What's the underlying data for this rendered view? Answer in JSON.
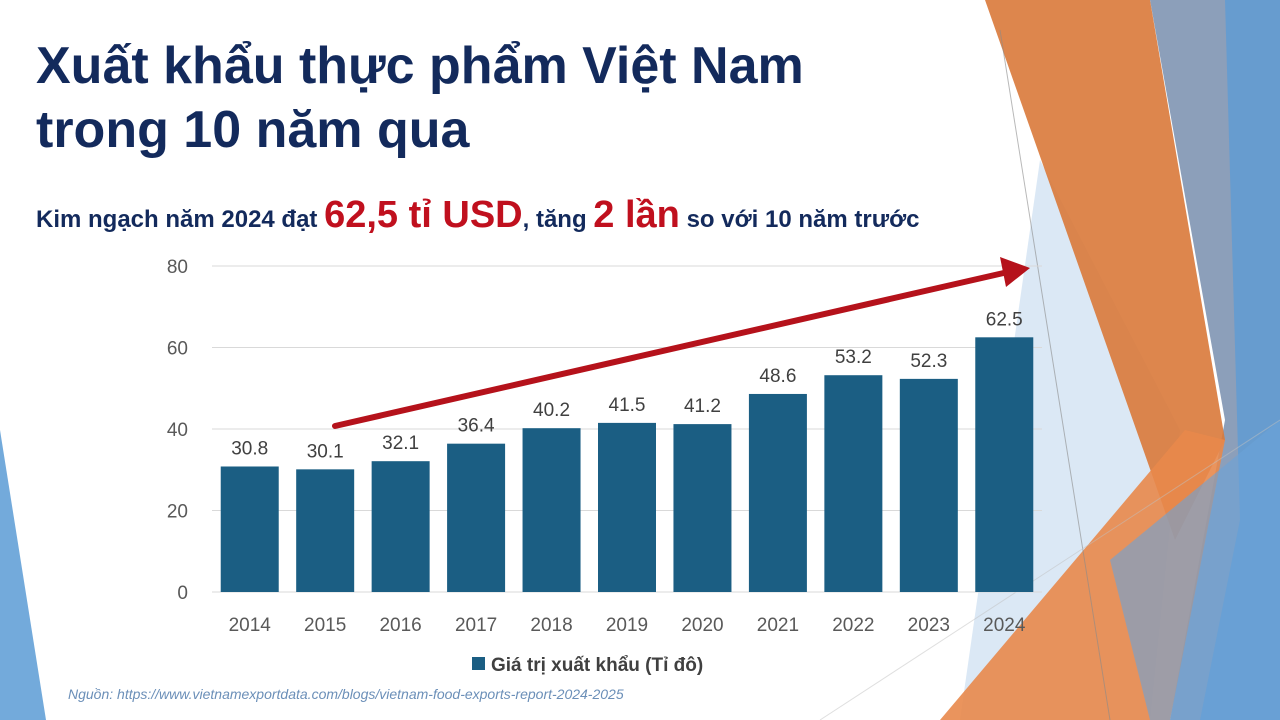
{
  "title": {
    "line1": "Xuất khẩu thực phẩm Việt Nam",
    "line2": "trong 10 năm qua"
  },
  "subtitle": {
    "part1": "Kim ngạch năm 2024 đạt ",
    "highlight1": "62,5 tỉ USD",
    "part2": ", tăng ",
    "highlight2": "2 lần",
    "part3": " so với 10 năm trước"
  },
  "source": "Nguồn: https://www.vietnamexportdata.com/blogs/vietnam-food-exports-report-2024-2025",
  "colors": {
    "title": "#132a5c",
    "highlight": "#c0101e",
    "bar": "#1b5e83",
    "arrow": "#b5121b",
    "orange": "#e07b3a",
    "blue_accent": "#5b9bd5"
  },
  "chart_data": {
    "type": "bar",
    "categories": [
      "2014",
      "2015",
      "2016",
      "2017",
      "2018",
      "2019",
      "2020",
      "2021",
      "2022",
      "2023",
      "2024"
    ],
    "series": [
      {
        "name": "Giá trị xuất khẩu (Tỉ đô)",
        "values": [
          30.8,
          30.1,
          32.1,
          36.4,
          40.2,
          41.5,
          41.2,
          48.6,
          53.2,
          52.3,
          62.5
        ]
      }
    ],
    "y_ticks": [
      "0",
      "20",
      "40",
      "60",
      "80"
    ],
    "ylim": [
      0,
      80
    ],
    "grid": true,
    "legend_position": "bottom",
    "data_labels": [
      "30.8",
      "30.1",
      "32.1",
      "36.4",
      "40.2",
      "41.5",
      "41.2",
      "48.6",
      "53.2",
      "52.3",
      "62.5"
    ],
    "annotation": "upward trend arrow"
  }
}
